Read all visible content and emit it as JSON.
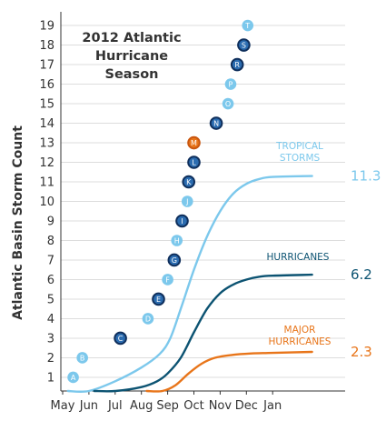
{
  "chart_data": {
    "type": "line",
    "title_lines": [
      "2012 Atlantic",
      "Hurricane",
      "Season"
    ],
    "ylabel": "Atlantic Basin Storm Count",
    "xlabel": "",
    "x_ticks": [
      "May",
      "Jun",
      "Jul",
      "Aug",
      "Sep",
      "Oct",
      "Nov",
      "Dec",
      "Jan"
    ],
    "y_ticks": [
      1,
      2,
      3,
      4,
      5,
      6,
      7,
      8,
      9,
      10,
      11,
      12,
      13,
      14,
      15,
      16,
      17,
      18,
      19
    ],
    "ylim": [
      0.3,
      19.7
    ],
    "grid": true,
    "series": [
      {
        "name": "TROPICAL STORMS",
        "label_lines": [
          "TROPICAL",
          "STORMS"
        ],
        "color": "#7cc8ec",
        "end_value": "11.3",
        "points": [
          [
            0.2,
            0
          ],
          [
            1.0,
            0.3
          ],
          [
            2.0,
            0.8
          ],
          [
            3.0,
            1.5
          ],
          [
            3.7,
            2.2
          ],
          [
            4.1,
            3.0
          ],
          [
            4.5,
            4.5
          ],
          [
            5.0,
            6.5
          ],
          [
            5.5,
            8.2
          ],
          [
            6.0,
            9.5
          ],
          [
            6.5,
            10.4
          ],
          [
            7.0,
            10.9
          ],
          [
            7.5,
            11.15
          ],
          [
            8.0,
            11.25
          ],
          [
            9.5,
            11.3
          ]
        ]
      },
      {
        "name": "HURRICANES",
        "label_lines": [
          "HURRICANES"
        ],
        "color": "#0c5372",
        "end_value": "6.2",
        "points": [
          [
            1.2,
            0
          ],
          [
            2.0,
            0.2
          ],
          [
            3.0,
            0.5
          ],
          [
            3.6,
            0.8
          ],
          [
            4.0,
            1.2
          ],
          [
            4.5,
            2.0
          ],
          [
            5.0,
            3.3
          ],
          [
            5.5,
            4.5
          ],
          [
            6.0,
            5.3
          ],
          [
            6.5,
            5.75
          ],
          [
            7.0,
            6.0
          ],
          [
            7.5,
            6.15
          ],
          [
            8.0,
            6.2
          ],
          [
            9.5,
            6.25
          ]
        ]
      },
      {
        "name": "MAJOR HURRICANES",
        "label_lines": [
          "MAJOR",
          "HURRICANES"
        ],
        "color": "#e8751a",
        "end_value": "2.3",
        "points": [
          [
            3.2,
            0
          ],
          [
            3.8,
            0.15
          ],
          [
            4.3,
            0.6
          ],
          [
            4.8,
            1.2
          ],
          [
            5.3,
            1.7
          ],
          [
            5.8,
            2.0
          ],
          [
            6.5,
            2.15
          ],
          [
            7.2,
            2.22
          ],
          [
            8.0,
            2.25
          ],
          [
            9.5,
            2.3
          ]
        ]
      }
    ],
    "storms": [
      {
        "letter": "A",
        "x": 0.4,
        "y": 1,
        "category": "tropical storm",
        "color": "#7cc8ec"
      },
      {
        "letter": "B",
        "x": 0.75,
        "y": 2,
        "category": "tropical storm",
        "color": "#7cc8ec"
      },
      {
        "letter": "C",
        "x": 2.2,
        "y": 3,
        "category": "hurricane",
        "color": "#2b6cb0"
      },
      {
        "letter": "D",
        "x": 3.25,
        "y": 4,
        "category": "tropical storm",
        "color": "#7cc8ec"
      },
      {
        "letter": "E",
        "x": 3.65,
        "y": 5,
        "category": "hurricane",
        "color": "#2b6cb0"
      },
      {
        "letter": "F",
        "x": 4.0,
        "y": 6,
        "category": "tropical storm",
        "color": "#7cc8ec"
      },
      {
        "letter": "G",
        "x": 4.25,
        "y": 7,
        "category": "hurricane",
        "color": "#2b6cb0"
      },
      {
        "letter": "H",
        "x": 4.35,
        "y": 8,
        "category": "tropical storm",
        "color": "#7cc8ec"
      },
      {
        "letter": "I",
        "x": 4.55,
        "y": 9,
        "category": "hurricane",
        "color": "#2b6cb0"
      },
      {
        "letter": "J",
        "x": 4.75,
        "y": 10,
        "category": "tropical storm",
        "color": "#7cc8ec"
      },
      {
        "letter": "K",
        "x": 4.8,
        "y": 11,
        "category": "hurricane",
        "color": "#2b6cb0"
      },
      {
        "letter": "L",
        "x": 5.0,
        "y": 12,
        "category": "hurricane",
        "color": "#2b6cb0"
      },
      {
        "letter": "M",
        "x": 5.0,
        "y": 13,
        "category": "major hurricane",
        "color": "#e8751a"
      },
      {
        "letter": "N",
        "x": 5.85,
        "y": 14,
        "category": "hurricane",
        "color": "#2b6cb0"
      },
      {
        "letter": "O",
        "x": 6.3,
        "y": 15,
        "category": "tropical storm",
        "color": "#7cc8ec"
      },
      {
        "letter": "P",
        "x": 6.4,
        "y": 16,
        "category": "tropical storm",
        "color": "#7cc8ec"
      },
      {
        "letter": "R",
        "x": 6.65,
        "y": 17,
        "category": "hurricane",
        "color": "#2b6cb0"
      },
      {
        "letter": "S",
        "x": 6.9,
        "y": 18,
        "category": "hurricane",
        "color": "#2b6cb0"
      },
      {
        "letter": "T",
        "x": 7.05,
        "y": 19,
        "category": "tropical storm",
        "color": "#7cc8ec"
      }
    ],
    "colors": {
      "grid": "#dddddd",
      "axis": "#333333",
      "hurricane_ring": "#0f2f5c",
      "major_ring": "#c9560f"
    }
  }
}
